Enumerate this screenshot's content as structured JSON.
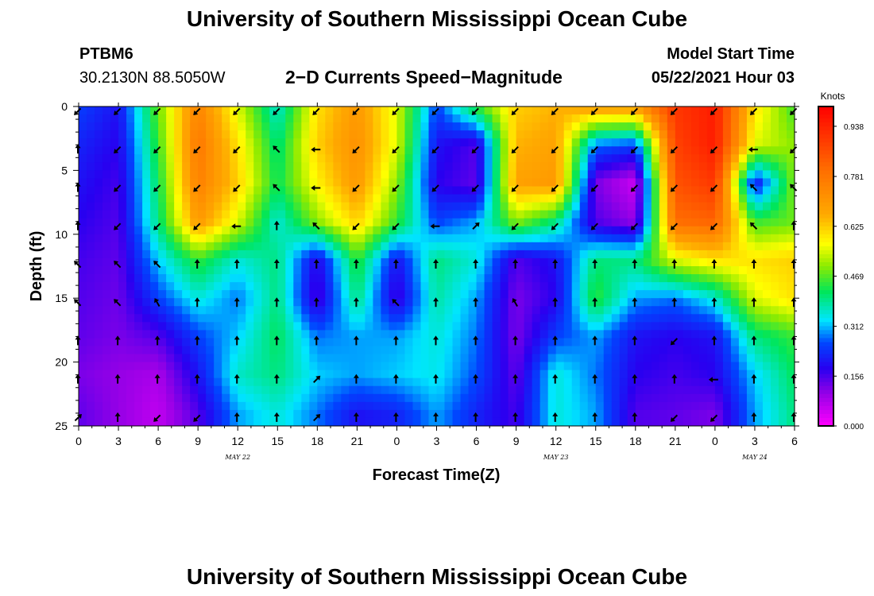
{
  "header": {
    "title": "University of Southern Mississippi Ocean Cube",
    "station": "PTBM6",
    "location": "30.2130N  88.5050W",
    "plot_title": "2−D Currents Speed−Magnitude",
    "model_start_label": "Model Start Time",
    "model_start_value": "05/22/2021 Hour 03"
  },
  "footer": {
    "title": "University of Southern Mississippi Ocean Cube"
  },
  "chart_data": {
    "type": "heatmap",
    "title": "2−D Currents Speed−Magnitude",
    "xlabel": "Forecast Time(Z)",
    "ylabel": "Depth (ft)",
    "x_tick_labels": [
      "0",
      "3",
      "6",
      "9",
      "12",
      "15",
      "18",
      "21",
      "0",
      "3",
      "6",
      "9",
      "12",
      "15",
      "18",
      "21",
      "0",
      "3",
      "6"
    ],
    "x_date_labels": [
      {
        "label": "MAY 22",
        "hour_index": 12
      },
      {
        "label": "MAY 23",
        "hour_index": 36
      },
      {
        "label": "MAY 24",
        "hour_index": 51
      }
    ],
    "x_range_hours": [
      0,
      54
    ],
    "y_tick_labels": [
      "0",
      "5",
      "10",
      "15",
      "20",
      "25"
    ],
    "y_range_ft": [
      0,
      25
    ],
    "colorbar": {
      "title": "Knots",
      "labels": [
        "0.938",
        "0.781",
        "0.625",
        "0.469",
        "0.312",
        "0.156",
        "0.000"
      ],
      "range": [
        0,
        1.0
      ]
    },
    "grid_hours": [
      0,
      3,
      6,
      9,
      12,
      15,
      18,
      21,
      24,
      27,
      30,
      33,
      36,
      39,
      42,
      45,
      48,
      51,
      54
    ],
    "grid_depths_ft": [
      0,
      3,
      6,
      9,
      12,
      15,
      18,
      21,
      24
    ],
    "speed_knots": [
      [
        0.25,
        0.2,
        0.48,
        0.75,
        0.55,
        0.35,
        0.6,
        0.7,
        0.55,
        0.25,
        0.45,
        0.62,
        0.65,
        0.7,
        0.7,
        0.9,
        0.95,
        0.6,
        0.45
      ],
      [
        0.22,
        0.18,
        0.45,
        0.78,
        0.6,
        0.4,
        0.62,
        0.72,
        0.55,
        0.2,
        0.15,
        0.65,
        0.68,
        0.28,
        0.25,
        0.88,
        0.95,
        0.55,
        0.5
      ],
      [
        0.2,
        0.16,
        0.42,
        0.76,
        0.62,
        0.42,
        0.58,
        0.7,
        0.5,
        0.18,
        0.14,
        0.68,
        0.7,
        0.12,
        0.05,
        0.85,
        0.9,
        0.2,
        0.5
      ],
      [
        0.18,
        0.15,
        0.4,
        0.7,
        0.55,
        0.35,
        0.5,
        0.62,
        0.45,
        0.25,
        0.3,
        0.5,
        0.4,
        0.15,
        0.1,
        0.8,
        0.82,
        0.45,
        0.48
      ],
      [
        0.16,
        0.14,
        0.32,
        0.45,
        0.35,
        0.4,
        0.18,
        0.45,
        0.2,
        0.4,
        0.35,
        0.15,
        0.2,
        0.4,
        0.4,
        0.55,
        0.6,
        0.6,
        0.62
      ],
      [
        0.15,
        0.13,
        0.25,
        0.35,
        0.28,
        0.4,
        0.15,
        0.4,
        0.16,
        0.38,
        0.3,
        0.12,
        0.18,
        0.45,
        0.3,
        0.28,
        0.35,
        0.55,
        0.6
      ],
      [
        0.14,
        0.12,
        0.15,
        0.25,
        0.32,
        0.42,
        0.28,
        0.3,
        0.3,
        0.35,
        0.28,
        0.12,
        0.25,
        0.3,
        0.2,
        0.18,
        0.2,
        0.4,
        0.45
      ],
      [
        0.12,
        0.1,
        0.08,
        0.2,
        0.36,
        0.4,
        0.32,
        0.3,
        0.32,
        0.34,
        0.26,
        0.14,
        0.35,
        0.28,
        0.18,
        0.16,
        0.18,
        0.32,
        0.42
      ],
      [
        0.14,
        0.1,
        0.06,
        0.15,
        0.3,
        0.35,
        0.28,
        0.2,
        0.22,
        0.3,
        0.22,
        0.16,
        0.35,
        0.3,
        0.15,
        0.14,
        0.12,
        0.3,
        0.4
      ]
    ],
    "arrow_directions_deg": [
      [
        225,
        225,
        225,
        225,
        225,
        225,
        225,
        225,
        225,
        225,
        225,
        225,
        225,
        225,
        225,
        225,
        225,
        225,
        225
      ],
      [
        0,
        225,
        225,
        225,
        225,
        315,
        270,
        225,
        225,
        225,
        225,
        225,
        225,
        225,
        225,
        225,
        225,
        270,
        225
      ],
      [
        0,
        225,
        225,
        225,
        225,
        315,
        270,
        225,
        225,
        225,
        225,
        225,
        225,
        225,
        225,
        225,
        225,
        315,
        315
      ],
      [
        0,
        225,
        225,
        225,
        270,
        0,
        315,
        225,
        225,
        270,
        45,
        225,
        225,
        225,
        225,
        225,
        225,
        315,
        0
      ],
      [
        315,
        315,
        315,
        0,
        0,
        0,
        0,
        0,
        0,
        0,
        0,
        0,
        0,
        0,
        0,
        0,
        0,
        0,
        0
      ],
      [
        315,
        315,
        330,
        0,
        0,
        0,
        0,
        0,
        315,
        0,
        0,
        330,
        0,
        0,
        0,
        0,
        0,
        0,
        0
      ],
      [
        0,
        0,
        0,
        0,
        0,
        0,
        0,
        0,
        0,
        0,
        0,
        0,
        0,
        0,
        0,
        225,
        0,
        0,
        0
      ],
      [
        0,
        0,
        0,
        0,
        0,
        0,
        45,
        0,
        0,
        0,
        0,
        0,
        0,
        0,
        0,
        0,
        270,
        0,
        0
      ],
      [
        45,
        0,
        225,
        225,
        0,
        0,
        45,
        0,
        0,
        0,
        0,
        0,
        0,
        0,
        0,
        225,
        225,
        0,
        0
      ]
    ]
  }
}
